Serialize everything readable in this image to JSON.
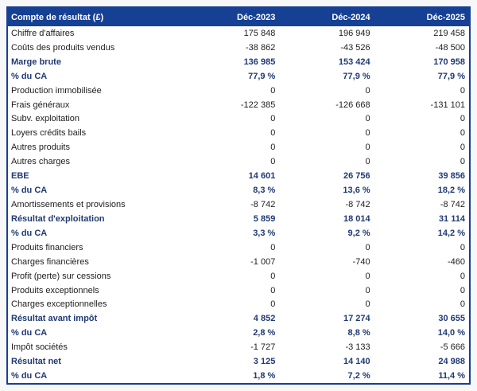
{
  "colors": {
    "header_bg": "#164093",
    "header_text": "#ffffff",
    "border": "#164093",
    "bold_text": "#1f3a74",
    "normal_text": "#1d1d1f",
    "page_bg": "#f7f7f7",
    "table_bg": "#ffffff"
  },
  "chart_data": {
    "type": "table",
    "title": "Compte de résultat (£)",
    "columns": [
      "Déc-2023",
      "Déc-2024",
      "Déc-2025"
    ],
    "rows": [
      {
        "label": "Chiffre d'affaires",
        "values": [
          "175 848",
          "196 949",
          "219 458"
        ],
        "bold": false
      },
      {
        "label": "Coûts des produits vendus",
        "values": [
          "-38 862",
          "-43 526",
          "-48 500"
        ],
        "bold": false
      },
      {
        "label": "Marge brute",
        "values": [
          "136 985",
          "153 424",
          "170 958"
        ],
        "bold": true
      },
      {
        "label": "% du CA",
        "values": [
          "77,9 %",
          "77,9 %",
          "77,9 %"
        ],
        "bold": true
      },
      {
        "label": "Production immobilisée",
        "values": [
          "0",
          "0",
          "0"
        ],
        "bold": false
      },
      {
        "label": "Frais généraux",
        "values": [
          "-122 385",
          "-126 668",
          "-131 101"
        ],
        "bold": false
      },
      {
        "label": "Subv. exploitation",
        "values": [
          "0",
          "0",
          "0"
        ],
        "bold": false
      },
      {
        "label": "Loyers crédits bails",
        "values": [
          "0",
          "0",
          "0"
        ],
        "bold": false
      },
      {
        "label": "Autres produits",
        "values": [
          "0",
          "0",
          "0"
        ],
        "bold": false
      },
      {
        "label": "Autres charges",
        "values": [
          "0",
          "0",
          "0"
        ],
        "bold": false
      },
      {
        "label": "EBE",
        "values": [
          "14 601",
          "26 756",
          "39 856"
        ],
        "bold": true
      },
      {
        "label": "% du CA",
        "values": [
          "8,3 %",
          "13,6 %",
          "18,2 %"
        ],
        "bold": true
      },
      {
        "label": "Amortissements et provisions",
        "values": [
          "-8 742",
          "-8 742",
          "-8 742"
        ],
        "bold": false
      },
      {
        "label": "Résultat d'exploitation",
        "values": [
          "5 859",
          "18 014",
          "31 114"
        ],
        "bold": true
      },
      {
        "label": "% du CA",
        "values": [
          "3,3 %",
          "9,2 %",
          "14,2 %"
        ],
        "bold": true
      },
      {
        "label": "Produits financiers",
        "values": [
          "0",
          "0",
          "0"
        ],
        "bold": false
      },
      {
        "label": "Charges financières",
        "values": [
          "-1 007",
          "-740",
          "-460"
        ],
        "bold": false
      },
      {
        "label": "Profit (perte) sur cessions",
        "values": [
          "0",
          "0",
          "0"
        ],
        "bold": false
      },
      {
        "label": "Produits exceptionnels",
        "values": [
          "0",
          "0",
          "0"
        ],
        "bold": false
      },
      {
        "label": "Charges exceptionnelles",
        "values": [
          "0",
          "0",
          "0"
        ],
        "bold": false
      },
      {
        "label": "Résultat avant impôt",
        "values": [
          "4 852",
          "17 274",
          "30 655"
        ],
        "bold": true
      },
      {
        "label": "% du CA",
        "values": [
          "2,8 %",
          "8,8 %",
          "14,0 %"
        ],
        "bold": true
      },
      {
        "label": "Impôt sociétés",
        "values": [
          "-1 727",
          "-3 133",
          "-5 666"
        ],
        "bold": false
      },
      {
        "label": "Résultat net",
        "values": [
          "3 125",
          "14 140",
          "24 988"
        ],
        "bold": true
      },
      {
        "label": "% du CA",
        "values": [
          "1,8 %",
          "7,2 %",
          "11,4 %"
        ],
        "bold": true
      }
    ]
  }
}
